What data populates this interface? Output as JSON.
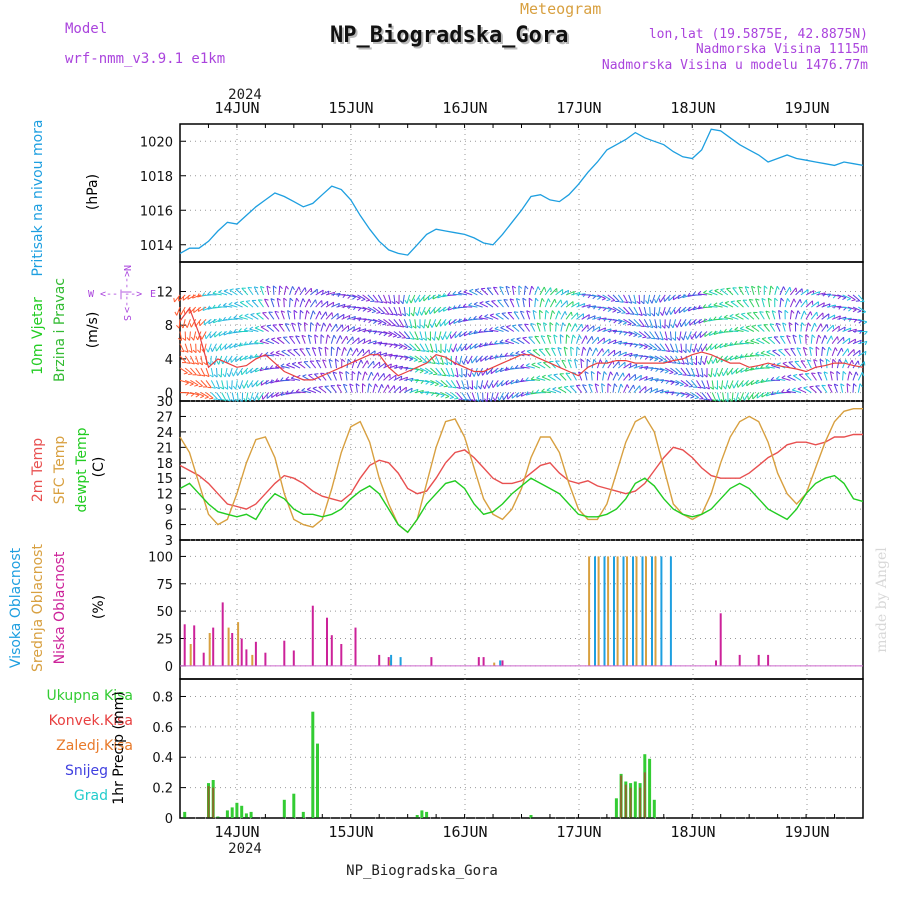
{
  "header": {
    "model_label": "Model",
    "model_name": "wrf-nmm_v3.9.1 e1km",
    "meteogram_label": "Meteogram",
    "station_title": "NP_Biogradska_Gora",
    "lonlat": "lon,lat (19.5875E, 42.8875N)",
    "elevation": "Nadmorska Visina 1115m",
    "model_elevation": "Nadmorska Visina u modelu 1476.77m",
    "year_top": "2024",
    "year_bottom": "2024",
    "footer_station": "NP_Biogradska_Gora",
    "credit": "made by Angel"
  },
  "colors": {
    "pressure": "#1e9fe0",
    "wind_label": "#22cc22",
    "wind_label2": "#33bb33",
    "temp2m": "#e85050",
    "sfc": "#d8a040",
    "dewpt": "#22cc22",
    "high_cloud": "#1e9fe0",
    "mid_cloud": "#d8a040",
    "low_cloud": "#cc2299",
    "total_precip": "#33cc33",
    "conv_precip": "#e84040",
    "frozen_precip": "#e87a2a",
    "snow": "#4040e0",
    "grad": "#22cccc",
    "purple": "#aa44dd",
    "credit": "#d8d8d8"
  },
  "x_ticks": [
    "14JUN",
    "15JUN",
    "16JUN",
    "17JUN",
    "18JUN",
    "19JUN"
  ],
  "panels": {
    "pressure": {
      "ylabel": "Pritisak na nivou mora",
      "unit": "(hPa)",
      "ticks": [
        "1014",
        "1016",
        "1018",
        "1020"
      ]
    },
    "wind": {
      "ylabel1": "10m Vjetar",
      "ylabel2": "Brzina i Pravac",
      "unit": "(m/s)",
      "ticks": [
        "0",
        "4",
        "8",
        "12"
      ],
      "compass": {
        "n": "N",
        "w": "W",
        "e": "E",
        "s": "S",
        "arrows_h": "<--|-->",
        "arrows_v": "<--|-->"
      }
    },
    "temperature": {
      "label_2m": "2m Temp",
      "label_sfc": "SFC Temp",
      "label_dew": "dewpt Temp",
      "unit": "(C)",
      "ticks": [
        "3",
        "6",
        "9",
        "12",
        "15",
        "18",
        "21",
        "24",
        "27",
        "30"
      ]
    },
    "cloud": {
      "label_high": "Visoka Oblacnost",
      "label_mid": "Srednja Oblacnost",
      "label_low": "Niska Oblacnost",
      "unit": "(%)",
      "ticks": [
        "0",
        "25",
        "50",
        "75",
        "100"
      ]
    },
    "precip": {
      "label_total": "Ukupna Kisa",
      "label_conv": "Konvek.Kisa",
      "label_frozen": "Zaledj.Kisa",
      "label_snow": "Snijeg",
      "label_grad": "Grad",
      "unit": "1hr Precip (mm)",
      "ticks": [
        "0",
        "0.2",
        "0.4",
        "0.6",
        "0.8"
      ]
    }
  },
  "chart_data": [
    {
      "type": "line",
      "panel": "pressure",
      "x_unit": "hours from 13JUN 12UTC",
      "ylim": [
        1013,
        1021
      ],
      "series": [
        {
          "x": [
            0,
            2,
            4,
            6,
            8,
            10,
            12,
            14,
            16,
            18,
            20,
            22,
            24,
            26,
            28,
            30,
            32,
            34,
            36,
            38,
            40,
            42,
            44,
            46,
            48,
            50,
            52,
            54,
            56,
            58,
            60,
            62,
            64,
            66,
            68,
            70,
            72,
            74,
            76,
            78,
            80,
            82,
            84,
            86,
            88,
            90,
            92,
            94,
            96,
            98,
            100,
            102,
            104,
            106,
            108,
            110,
            112,
            114,
            116,
            118,
            120,
            122,
            124,
            126,
            128,
            130,
            132,
            134,
            136,
            138,
            140,
            142,
            144
          ],
          "y": [
            1013.5,
            1013.8,
            1013.8,
            1014.2,
            1014.8,
            1015.3,
            1015.2,
            1015.7,
            1016.2,
            1016.6,
            1017.0,
            1016.8,
            1016.5,
            1016.2,
            1016.4,
            1016.9,
            1017.4,
            1017.2,
            1016.6,
            1015.7,
            1014.9,
            1014.2,
            1013.7,
            1013.5,
            1013.4,
            1014.0,
            1014.6,
            1014.9,
            1014.8,
            1014.7,
            1014.6,
            1014.4,
            1014.1,
            1014.0,
            1014.6,
            1015.3,
            1016.0,
            1016.8,
            1016.9,
            1016.6,
            1016.5,
            1016.9,
            1017.5,
            1018.2,
            1018.8,
            1019.5,
            1019.8,
            1020.1,
            1020.5,
            1020.2,
            1020.0,
            1019.8,
            1019.4,
            1019.1,
            1019.0,
            1019.5,
            1020.7,
            1020.6,
            1020.2,
            1019.8,
            1019.5,
            1019.2,
            1018.8,
            1019.0,
            1019.2,
            1019.0,
            1018.9,
            1018.8,
            1018.7,
            1018.6,
            1018.8,
            1018.7,
            1018.6
          ]
        }
      ]
    },
    {
      "type": "line",
      "panel": "wind",
      "x_unit": "hours from 13JUN 12UTC",
      "ylim": [
        0,
        14
      ],
      "series": [
        {
          "x": [
            0,
            2,
            4,
            6,
            8,
            10,
            12,
            14,
            16,
            18,
            20,
            22,
            24,
            26,
            28,
            30,
            32,
            34,
            36,
            38,
            40,
            42,
            44,
            46,
            48,
            50,
            52,
            54,
            56,
            58,
            60,
            62,
            64,
            66,
            68,
            70,
            72,
            74,
            76,
            78,
            80,
            82,
            84,
            86,
            88,
            90,
            92,
            94,
            96,
            98,
            100,
            102,
            104,
            106,
            108,
            110,
            112,
            114,
            116,
            118,
            120,
            122,
            124,
            126,
            128,
            130,
            132,
            134,
            136,
            138,
            140,
            142,
            144
          ],
          "y": [
            8.5,
            10,
            7,
            3,
            4,
            3.5,
            3,
            3.2,
            4,
            4.5,
            3.5,
            2.5,
            2,
            1.5,
            1.5,
            2,
            2.5,
            3,
            3.5,
            4,
            4.5,
            4.5,
            3,
            2,
            2.5,
            3,
            3.5,
            4.5,
            4.2,
            3.5,
            3,
            2.5,
            2.5,
            3,
            3.5,
            4,
            4.5,
            4.5,
            4,
            3.5,
            3,
            2.5,
            2,
            3,
            3.5,
            3.5,
            3.8,
            3.8,
            3.5,
            3.5,
            3.5,
            3.5,
            3.8,
            4,
            4.5,
            4.8,
            4.5,
            4,
            3.5,
            3.5,
            3,
            3.2,
            3.5,
            3.2,
            3,
            2.8,
            2.5,
            3,
            3.2,
            3.5,
            3.5,
            3.2,
            3
          ]
        }
      ]
    },
    {
      "type": "line",
      "panel": "temperature",
      "x_unit": "hours from 13JUN 12UTC",
      "ylim": [
        3,
        30
      ],
      "series": [
        {
          "name": "2m Temp",
          "x": [
            0,
            2,
            4,
            6,
            8,
            10,
            12,
            14,
            16,
            18,
            20,
            22,
            24,
            26,
            28,
            30,
            32,
            34,
            36,
            38,
            40,
            42,
            44,
            46,
            48,
            50,
            52,
            54,
            56,
            58,
            60,
            62,
            64,
            66,
            68,
            70,
            72,
            74,
            76,
            78,
            80,
            82,
            84,
            86,
            88,
            90,
            92,
            94,
            96,
            98,
            100,
            102,
            104,
            106,
            108,
            110,
            112,
            114,
            116,
            118,
            120,
            122,
            124,
            126,
            128,
            130,
            132,
            134,
            136,
            138,
            140,
            142,
            144
          ],
          "y": [
            17.5,
            16.5,
            15.5,
            14,
            12,
            10,
            9.5,
            9,
            10,
            12,
            14,
            15.5,
            15,
            14,
            12.5,
            11.5,
            11,
            10.5,
            12,
            15,
            17.5,
            18.5,
            18,
            16,
            13,
            12,
            12.5,
            15,
            18,
            20,
            20.5,
            19,
            17,
            15,
            14,
            14,
            14.5,
            16,
            17.5,
            18,
            16,
            14.5,
            14,
            14.5,
            13.5,
            13,
            12.5,
            12,
            12.5,
            14,
            16.5,
            19,
            21,
            20.5,
            19,
            17,
            15.5,
            15,
            15,
            15,
            16,
            17.5,
            19,
            20,
            21.5,
            22,
            22,
            21.5,
            22,
            23,
            23,
            23.5,
            23.5
          ]
        },
        {
          "name": "SFC Temp",
          "x": [
            0,
            2,
            4,
            6,
            8,
            10,
            12,
            14,
            16,
            18,
            20,
            22,
            24,
            26,
            28,
            30,
            32,
            34,
            36,
            38,
            40,
            42,
            44,
            46,
            48,
            50,
            52,
            54,
            56,
            58,
            60,
            62,
            64,
            66,
            68,
            70,
            72,
            74,
            76,
            78,
            80,
            82,
            84,
            86,
            88,
            90,
            92,
            94,
            96,
            98,
            100,
            102,
            104,
            106,
            108,
            110,
            112,
            114,
            116,
            118,
            120,
            122,
            124,
            126,
            128,
            130,
            132,
            134,
            136,
            138,
            140,
            142,
            144
          ],
          "y": [
            23,
            20,
            14,
            8,
            6,
            7,
            12,
            18,
            22.5,
            23,
            19,
            12,
            7,
            6,
            5.5,
            7,
            13,
            20,
            25,
            26,
            22,
            15,
            10,
            6,
            4.5,
            7,
            14,
            21,
            26,
            26.5,
            23,
            17,
            11,
            8,
            7,
            9,
            13,
            19,
            23,
            23,
            20,
            14,
            9,
            7,
            7,
            10,
            16,
            22,
            26,
            27,
            24,
            17,
            10,
            8,
            7,
            8,
            12,
            18,
            23,
            26,
            27,
            26,
            22,
            16,
            12,
            10,
            12,
            17,
            22,
            26,
            28,
            28.5,
            28.5
          ]
        },
        {
          "name": "dewpt Temp",
          "x": [
            0,
            2,
            4,
            6,
            8,
            10,
            12,
            14,
            16,
            18,
            20,
            22,
            24,
            26,
            28,
            30,
            32,
            34,
            36,
            38,
            40,
            42,
            44,
            46,
            48,
            50,
            52,
            54,
            56,
            58,
            60,
            62,
            64,
            66,
            68,
            70,
            72,
            74,
            76,
            78,
            80,
            82,
            84,
            86,
            88,
            90,
            92,
            94,
            96,
            98,
            100,
            102,
            104,
            106,
            108,
            110,
            112,
            114,
            116,
            118,
            120,
            122,
            124,
            126,
            128,
            130,
            132,
            134,
            136,
            138,
            140,
            142,
            144
          ],
          "y": [
            13,
            14,
            12,
            10,
            8.5,
            8,
            7.5,
            8,
            7,
            10,
            12,
            11,
            9,
            8,
            8,
            7.5,
            8,
            9,
            11,
            12.5,
            13.5,
            12,
            9,
            6,
            4.5,
            7,
            10,
            12,
            14,
            14.5,
            13,
            10,
            8,
            8.5,
            10,
            12,
            13.5,
            15,
            14,
            13,
            12,
            10,
            8,
            7.5,
            7.5,
            8,
            9,
            11,
            14,
            15,
            13.5,
            11,
            9,
            8,
            7.5,
            8,
            9,
            11,
            13,
            14,
            13,
            11,
            9,
            8,
            7,
            9,
            12,
            14,
            15,
            15.5,
            14,
            11,
            10.5
          ]
        }
      ]
    },
    {
      "type": "bar",
      "panel": "cloud",
      "x_unit": "hours from 13JUN 12UTC",
      "ylim": [
        0,
        100
      ],
      "series": [
        {
          "name": "Niska Oblacnost",
          "x": [
            1,
            3,
            5,
            7,
            9,
            11,
            13,
            14,
            16,
            18,
            22,
            24,
            28,
            31,
            32,
            34,
            37,
            42,
            44,
            53,
            63,
            64,
            68,
            113,
            114,
            118,
            122,
            124
          ],
          "y": [
            38,
            37,
            12,
            35,
            58,
            30,
            25,
            15,
            22,
            12,
            23,
            14,
            55,
            44,
            28,
            20,
            35,
            10,
            8,
            8,
            8,
            8,
            5,
            5,
            48,
            10,
            10,
            10
          ]
        },
        {
          "name": "Srednja Oblacnost",
          "x": [
            2,
            6,
            10,
            12,
            15,
            44,
            66,
            86,
            88,
            90,
            92,
            94,
            96,
            98,
            100
          ],
          "y": [
            20,
            30,
            35,
            40,
            10,
            5,
            3,
            100,
            100,
            100,
            100,
            100,
            100,
            100,
            100
          ]
        },
        {
          "name": "Visoka Oblacnost",
          "x": [
            44,
            46,
            67,
            87,
            89,
            91,
            93,
            95,
            97,
            99,
            101,
            103
          ],
          "y": [
            10,
            8,
            5,
            100,
            100,
            100,
            100,
            100,
            100,
            100,
            100,
            100
          ]
        }
      ]
    },
    {
      "type": "bar",
      "panel": "precip",
      "x_unit": "hours from 13JUN 12UTC",
      "ylim": [
        0,
        0.9
      ],
      "series": [
        {
          "name": "Ukupna Kisa",
          "x": [
            1,
            6,
            7,
            8,
            10,
            11,
            12,
            13,
            14,
            15,
            22,
            24,
            26,
            28,
            29,
            50,
            51,
            52,
            74,
            92,
            93,
            94,
            95,
            96,
            97,
            98,
            99,
            100
          ],
          "y": [
            0.04,
            0.23,
            0.25,
            0.01,
            0.05,
            0.07,
            0.1,
            0.08,
            0.03,
            0.04,
            0.12,
            0.16,
            0.04,
            0.7,
            0.49,
            0.02,
            0.05,
            0.04,
            0.02,
            0.13,
            0.29,
            0.24,
            0.23,
            0.24,
            0.23,
            0.42,
            0.39,
            0.12
          ]
        },
        {
          "name": "Konvek.Kisa",
          "x": [
            6,
            7,
            93,
            94,
            95,
            97,
            98
          ],
          "y": [
            0.21,
            0.2,
            0.28,
            0.22,
            0.2,
            0.2,
            0.3
          ]
        }
      ]
    }
  ]
}
